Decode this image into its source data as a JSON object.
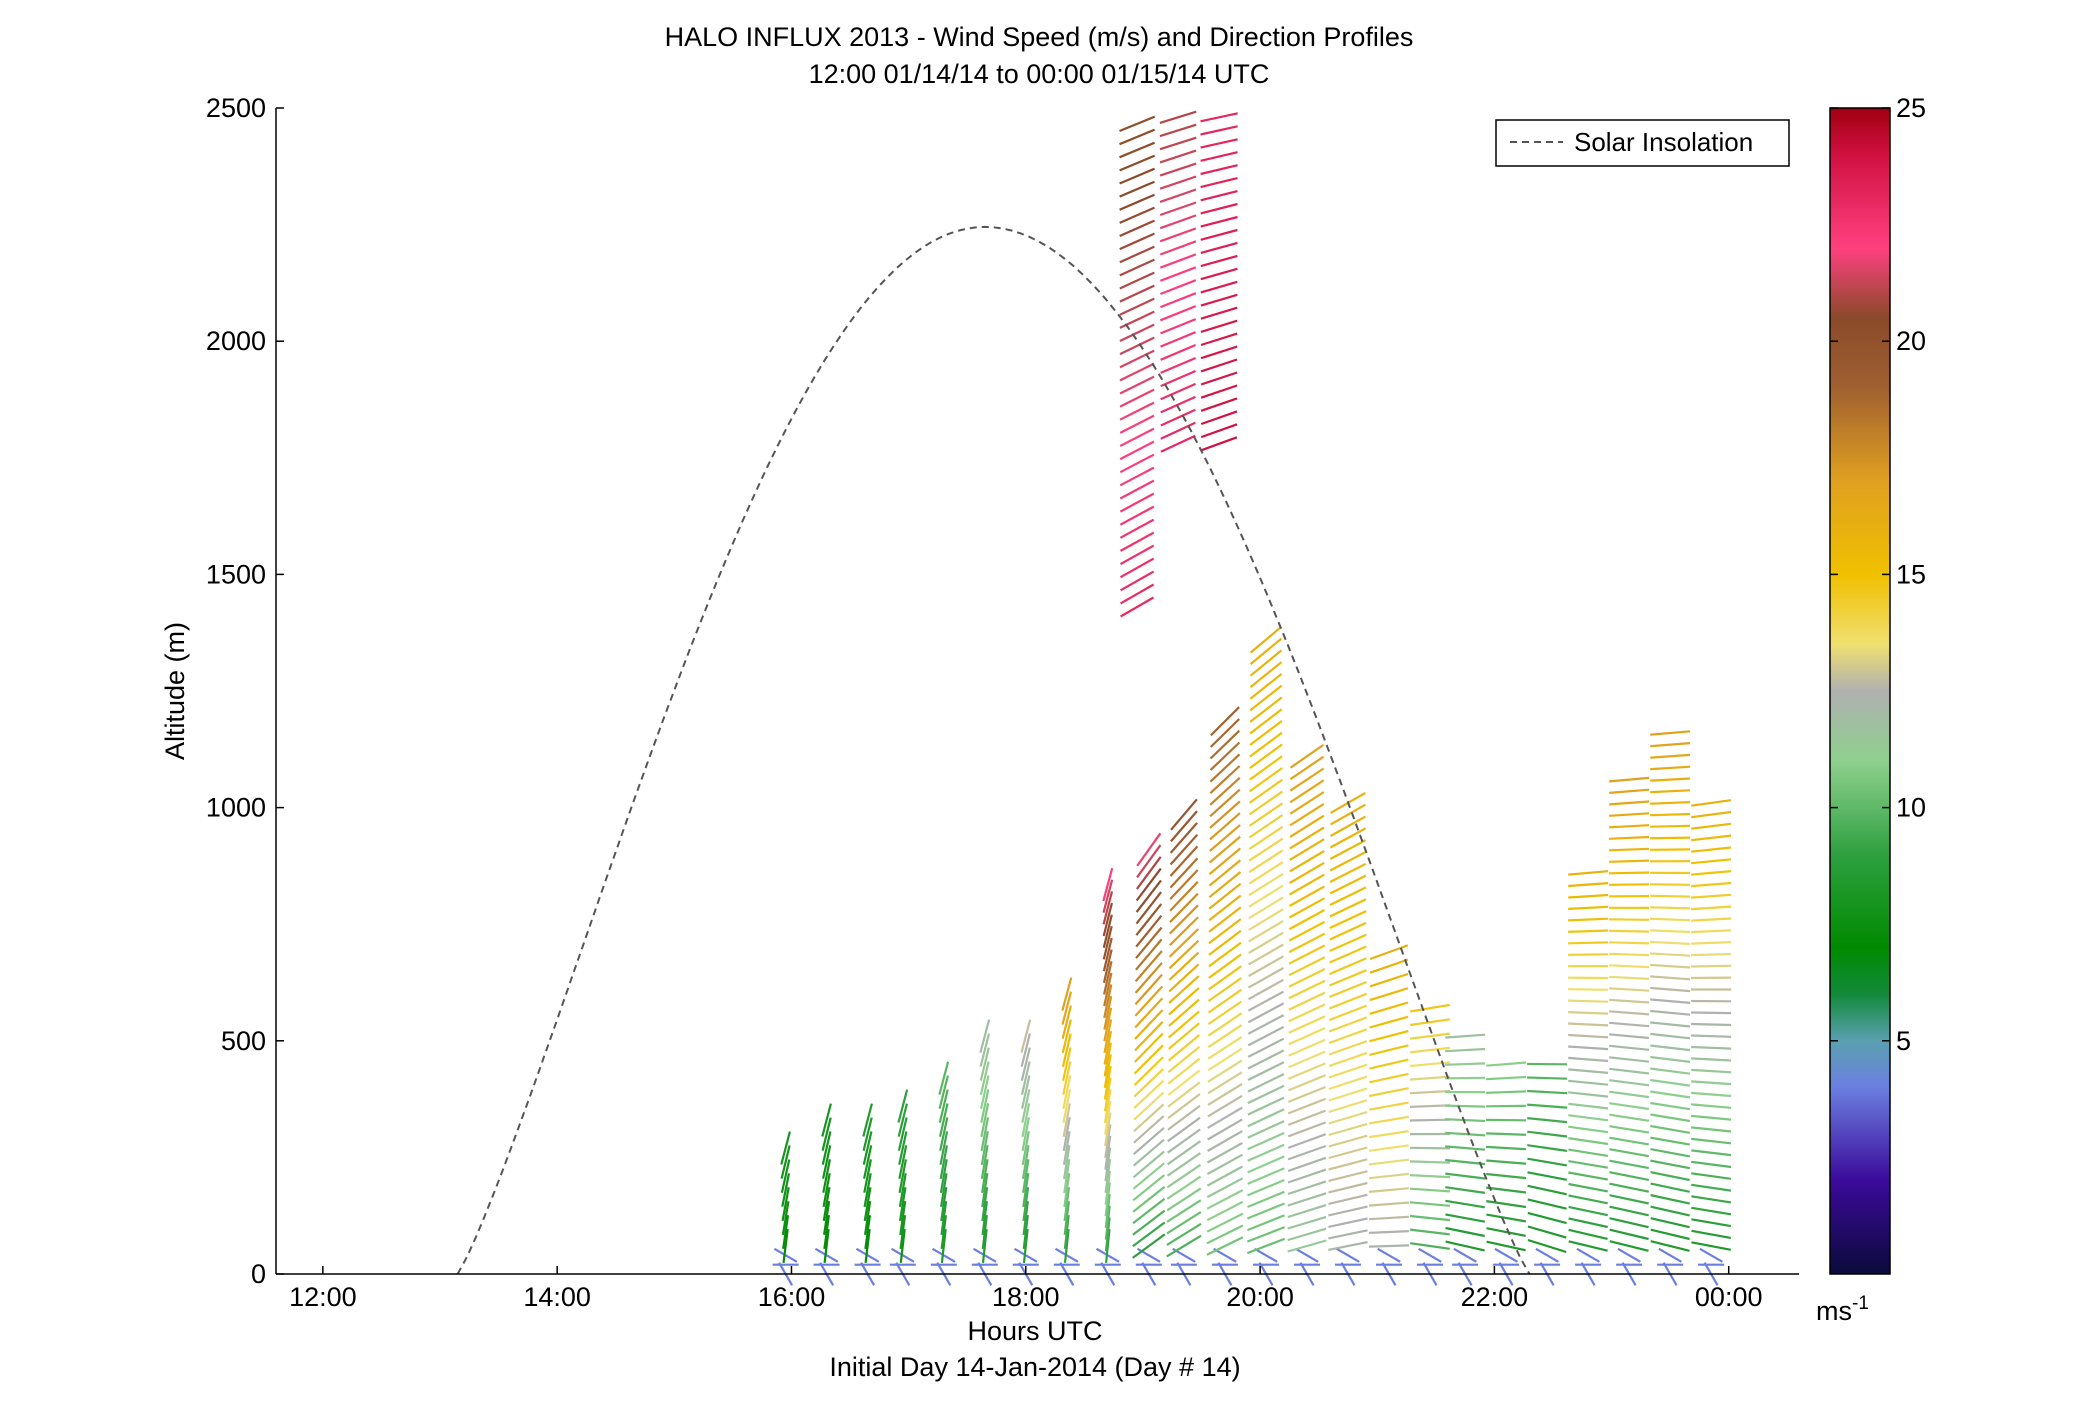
{
  "chart_data": {
    "type": "scatter",
    "title": "HALO INFLUX 2013 - Wind Speed (m/s) and Direction Profiles",
    "subtitle": "12:00 01/14/14 to 00:00 01/15/14  UTC",
    "xlabel": "Hours UTC",
    "xlabel2": "Initial Day 14-Jan-2014 (Day # 14)",
    "ylabel": "Altitude (m)",
    "xlim": [
      11.6,
      24.6
    ],
    "ylim": [
      0,
      2500
    ],
    "xticks": [
      {
        "value": 12,
        "label": "12:00"
      },
      {
        "value": 14,
        "label": "14:00"
      },
      {
        "value": 16,
        "label": "16:00"
      },
      {
        "value": 18,
        "label": "18:00"
      },
      {
        "value": 20,
        "label": "20:00"
      },
      {
        "value": 22,
        "label": "22:00"
      },
      {
        "value": 24,
        "label": "00:00"
      }
    ],
    "yticks": [
      0,
      500,
      1000,
      1500,
      2000,
      2500
    ],
    "grid": false,
    "legend": {
      "position": "top-right",
      "entries": [
        {
          "label": "Solar Insolation",
          "style": "dashed",
          "color": "#555555"
        }
      ]
    },
    "colorbar": {
      "ticks": [
        5,
        10,
        15,
        20,
        25
      ],
      "range": [
        0,
        25
      ],
      "unit_label": "ms",
      "unit_exponent": "-1",
      "stops": [
        {
          "v": 0,
          "c": "#0a0a3a"
        },
        {
          "v": 2,
          "c": "#3b0a9a"
        },
        {
          "v": 4,
          "c": "#6b7fe0"
        },
        {
          "v": 5,
          "c": "#5aa0b0"
        },
        {
          "v": 6,
          "c": "#128a3a"
        },
        {
          "v": 7,
          "c": "#008a00"
        },
        {
          "v": 9,
          "c": "#2fa040"
        },
        {
          "v": 11,
          "c": "#8ed08e"
        },
        {
          "v": 12.5,
          "c": "#b0b0b0"
        },
        {
          "v": 13.5,
          "c": "#f0e070"
        },
        {
          "v": 15,
          "c": "#f0c000"
        },
        {
          "v": 17,
          "c": "#e0a020"
        },
        {
          "v": 19,
          "c": "#a06030"
        },
        {
          "v": 20.5,
          "c": "#8a4a2a"
        },
        {
          "v": 22,
          "c": "#ff4080"
        },
        {
          "v": 24,
          "c": "#d01040"
        },
        {
          "v": 25,
          "c": "#a00010"
        }
      ]
    },
    "solar_insolation": {
      "description_points": [
        [
          13.15,
          0
        ],
        [
          14,
          1150
        ],
        [
          15,
          1800
        ],
        [
          16,
          2120
        ],
        [
          17.5,
          2245
        ],
        [
          18.5,
          2180
        ],
        [
          19.5,
          1900
        ],
        [
          20.5,
          1350
        ],
        [
          21.5,
          600
        ],
        [
          22.3,
          0
        ]
      ]
    },
    "wind_profiles": [
      {
        "t": 15.95,
        "z_max": 280,
        "speed_low": 7,
        "speed_high": 8,
        "dir": 175
      },
      {
        "t": 16.3,
        "z_max": 340,
        "speed_low": 7,
        "speed_high": 8,
        "dir": 170
      },
      {
        "t": 16.65,
        "z_max": 340,
        "speed_low": 7,
        "speed_high": 8.5,
        "dir": 170
      },
      {
        "t": 16.95,
        "z_max": 370,
        "speed_low": 7.5,
        "speed_high": 9,
        "dir": 165
      },
      {
        "t": 17.3,
        "z_max": 430,
        "speed_low": 8,
        "speed_high": 10,
        "dir": 160
      },
      {
        "t": 17.65,
        "z_max": 520,
        "speed_low": 8,
        "speed_high": 12,
        "dir": 160
      },
      {
        "t": 18.0,
        "z_max": 530,
        "speed_low": 8,
        "speed_high": 13,
        "dir": 155
      },
      {
        "t": 18.35,
        "z_max": 600,
        "speed_low": 8,
        "speed_high": 17,
        "dir": 150
      },
      {
        "t": 18.7,
        "z_max": 840,
        "speed_low": 8,
        "speed_high": 22,
        "dir": 145
      },
      {
        "t": 19.05,
        "z_max": 930,
        "speed_low": 8,
        "speed_high": 22,
        "dir": 145
      },
      {
        "t": 19.35,
        "z_max": 1000,
        "speed_low": 9,
        "speed_high": 20,
        "dir": 140
      },
      {
        "t": 19.7,
        "z_max": 1190,
        "speed_low": 10,
        "speed_high": 19,
        "dir": 135
      },
      {
        "t": 20.05,
        "z_max": 1360,
        "speed_low": 10,
        "speed_high": 16,
        "dir": 130
      },
      {
        "t": 20.4,
        "z_max": 1130,
        "speed_low": 11,
        "speed_high": 17,
        "dir": 125
      },
      {
        "t": 20.75,
        "z_max": 1010,
        "speed_low": 12,
        "speed_high": 16,
        "dir": 120
      },
      {
        "t": 21.1,
        "z_max": 690,
        "speed_low": 12,
        "speed_high": 16,
        "dir": 110
      },
      {
        "t": 21.45,
        "z_max": 590,
        "speed_low": 9,
        "speed_high": 15,
        "dir": 100
      },
      {
        "t": 21.75,
        "z_max": 530,
        "speed_low": 8,
        "speed_high": 12,
        "dir": 95
      },
      {
        "t": 22.1,
        "z_max": 460,
        "speed_low": 8,
        "speed_high": 11,
        "dir": 95
      },
      {
        "t": 22.45,
        "z_max": 460,
        "speed_low": 8,
        "speed_high": 10,
        "dir": 90
      },
      {
        "t": 22.8,
        "z_max": 870,
        "speed_low": 8,
        "speed_high": 16,
        "dir": 95
      },
      {
        "t": 23.15,
        "z_max": 1060,
        "speed_low": 8,
        "speed_high": 17,
        "dir": 95
      },
      {
        "t": 23.5,
        "z_max": 1170,
        "speed_low": 8,
        "speed_high": 17,
        "dir": 95
      },
      {
        "t": 23.85,
        "z_max": 1010,
        "speed_low": 8,
        "speed_high": 16,
        "dir": 98
      }
    ],
    "upper_profiles": [
      {
        "t": 18.95,
        "z_min": 1430,
        "z_max": 2490,
        "speed_low": 23,
        "speed_high": 20,
        "dir": 120
      },
      {
        "t": 19.3,
        "z_min": 1780,
        "z_max": 2490,
        "speed_low": 23,
        "speed_high": 21,
        "dir": 115
      },
      {
        "t": 19.65,
        "z_min": 1780,
        "z_max": 2490,
        "speed_low": 24,
        "speed_high": 23,
        "dir": 110
      }
    ]
  }
}
